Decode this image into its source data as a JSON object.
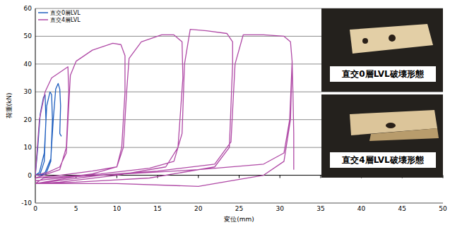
{
  "chart_data": {
    "type": "line",
    "x_label": "変位(mm)",
    "y_label": "荷重(kN)",
    "xlim": [
      0,
      50
    ],
    "ylim": [
      -10,
      60
    ],
    "xticks": [
      0,
      5,
      10,
      15,
      20,
      25,
      30,
      35,
      40,
      45,
      50
    ],
    "yticks": [
      -10,
      0,
      10,
      20,
      30,
      40,
      50,
      60
    ],
    "grid": true,
    "legend": "top-left",
    "series": [
      {
        "name": "直交0層LVL",
        "color": "#1f5fbf",
        "x": [
          0,
          0.3,
          0.6,
          1,
          1.2,
          1.3,
          1.1,
          0.6,
          0,
          0.5,
          1.1,
          1.4,
          1.8,
          2,
          2.1,
          1.9,
          1.3,
          0.5,
          1.2,
          1.9,
          2.2,
          2.5,
          2.8,
          3,
          3.1,
          3,
          3.2
        ],
        "values": [
          0,
          10,
          22,
          28,
          29,
          20,
          5,
          0.5,
          0,
          1,
          8,
          25,
          30,
          29,
          20,
          5,
          0.5,
          0,
          1,
          6,
          20,
          31,
          33,
          31,
          25,
          15,
          14
        ]
      },
      {
        "name": "直交4層LVL",
        "color": "#b04aa6",
        "x": [
          0,
          0.5,
          1.2,
          2,
          3.5,
          4,
          4.1,
          3.8,
          3,
          1,
          0,
          0,
          1.5,
          3,
          3.8,
          4.1,
          4.3,
          5,
          7,
          9.5,
          10.5,
          11,
          11,
          10.6,
          10,
          7,
          3,
          0,
          0,
          3,
          7,
          10,
          10.8,
          11.2,
          11.5,
          13,
          15.5,
          17,
          18,
          18.1,
          17.5,
          16,
          10,
          3,
          0,
          1,
          8,
          14,
          17,
          18,
          18.3,
          19,
          21,
          23.5,
          24.2,
          24.2,
          23.8,
          22,
          14,
          5,
          0,
          5,
          15,
          22,
          24,
          24.5,
          25.5,
          28,
          30.5,
          31.3,
          31.5,
          31.3,
          30.5,
          28,
          20,
          10,
          0,
          8,
          20,
          28,
          30.5,
          31.2,
          31.5,
          31.6,
          31.7,
          31.7
        ],
        "values": [
          0,
          20,
          30,
          35,
          38,
          39,
          30,
          10,
          2,
          0,
          -1,
          0,
          1,
          3,
          8,
          25,
          36,
          41,
          45,
          47.5,
          47,
          43,
          30,
          10,
          3,
          0.5,
          -1,
          -2,
          -1,
          0,
          1.5,
          3,
          10,
          30,
          42,
          48,
          50.5,
          50.5,
          48,
          35,
          10,
          3,
          0,
          -2.5,
          -3,
          -1,
          0.5,
          2.5,
          5,
          15,
          40,
          52.5,
          52,
          51,
          48,
          40,
          10,
          3,
          -1,
          -2.5,
          -3,
          -0.5,
          1.5,
          4,
          12,
          40,
          50.5,
          50.5,
          50,
          48,
          41,
          20,
          5,
          0,
          -4,
          -3,
          -3,
          0,
          2,
          4,
          8,
          20,
          41,
          30,
          15,
          2
        ]
      }
    ]
  },
  "photos": [
    {
      "caption": "直交0層LVL破壊形態"
    },
    {
      "caption": "直交4層LVL破壊形態"
    }
  ]
}
